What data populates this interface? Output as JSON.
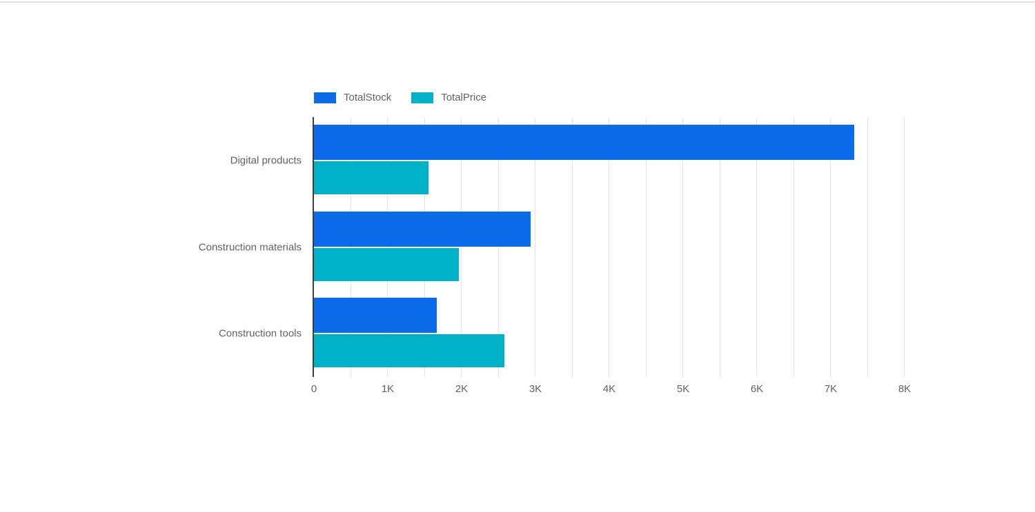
{
  "page": {
    "background": "#ffffff",
    "top_border_color": "#e0e0e0"
  },
  "chart_data": {
    "type": "bar",
    "orientation": "horizontal",
    "title": "",
    "xlabel": "",
    "ylabel": "",
    "categories": [
      "Digital products",
      "Construction materials",
      "Construction tools"
    ],
    "series": [
      {
        "name": "TotalStock",
        "color": "#0b6ceb",
        "values": [
          7320,
          2935,
          1665
        ]
      },
      {
        "name": "TotalPrice",
        "color": "#00b2c7",
        "values": [
          1550,
          1960,
          2580
        ]
      }
    ],
    "xlim": [
      0,
      8000
    ],
    "x_ticks": [
      "0",
      "1K",
      "2K",
      "3K",
      "4K",
      "5K",
      "6K",
      "7K",
      "8K"
    ],
    "x_tick_step": 1000,
    "x_minor_gridline_step": 500,
    "grid": true,
    "legend_position": "top",
    "gridline_color": "#e3e3e3",
    "axis_line_color": "#3c3c3c",
    "tick_label_color": "#616161",
    "category_label_color": "#616161",
    "legend_text_color": "#616161"
  }
}
